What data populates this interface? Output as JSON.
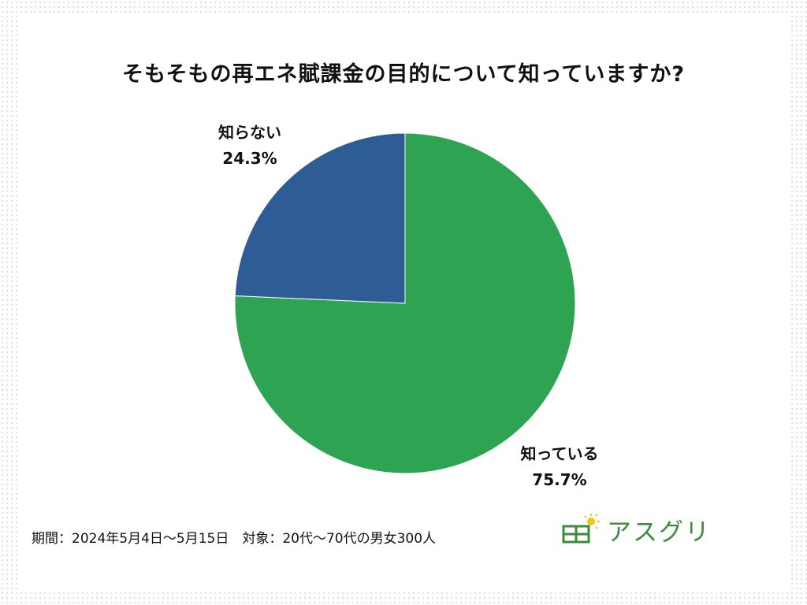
{
  "colors": {
    "known": "#2ea453",
    "unknown": "#2e5d96",
    "brand": "#3d8b3d"
  },
  "footer": {
    "period_note": "期間：2024年5月4日〜5月15日　対象：20代〜70代の男女300人"
  },
  "logo": {
    "icon": "solar-panel-sun-icon",
    "text": "アスグリ"
  },
  "chart_data": {
    "type": "pie",
    "title": "そもそもの再エネ賦課金の目的について知っていますか?",
    "start": "12 o'clock",
    "direction": "clockwise",
    "slices": [
      {
        "label": "知っている",
        "value": 75.7,
        "value_label": "75.7%",
        "color": "#2ea453"
      },
      {
        "label": "知らない",
        "value": 24.3,
        "value_label": "24.3%",
        "color": "#2e5d96"
      }
    ]
  }
}
